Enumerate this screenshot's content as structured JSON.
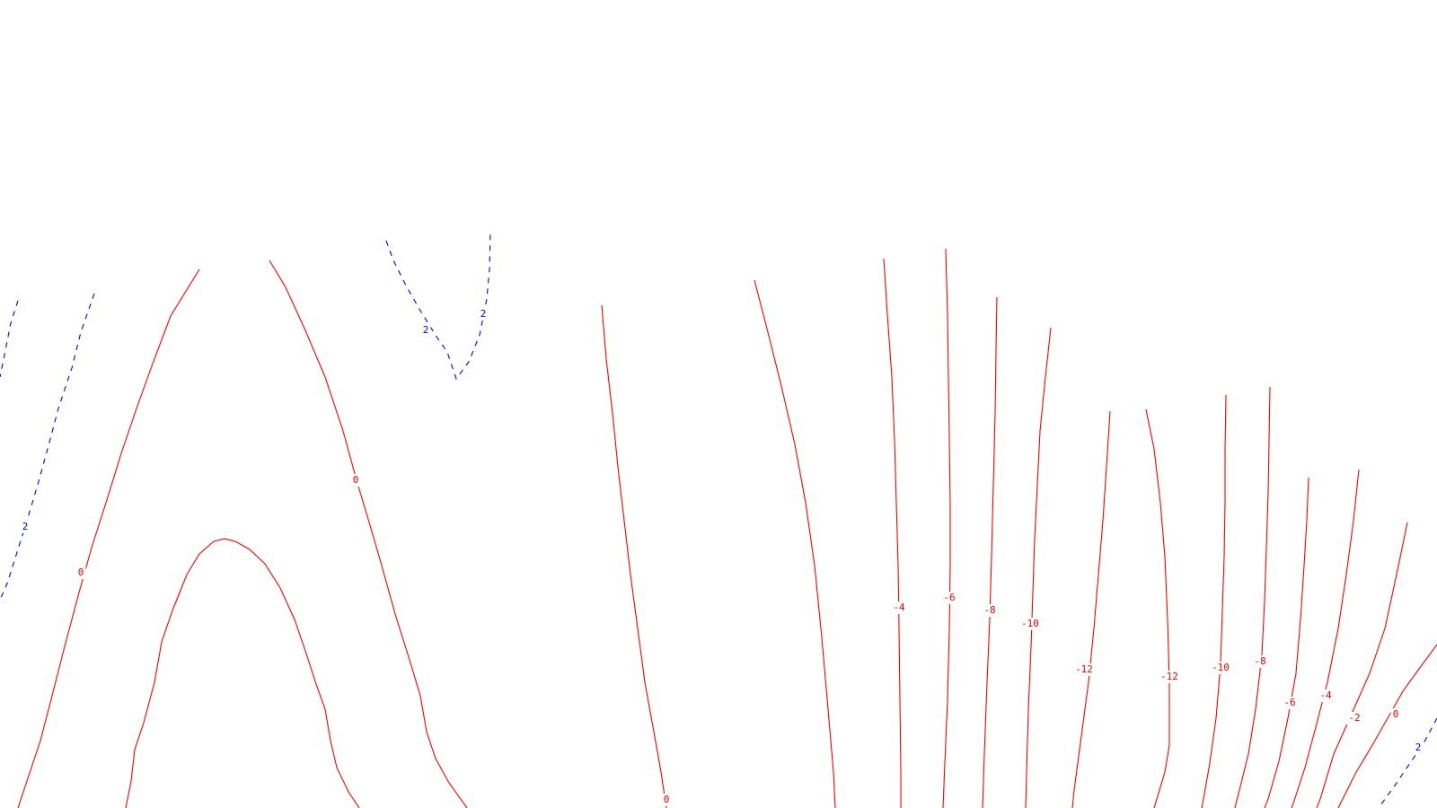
{
  "chart_data": {
    "type": "contour",
    "title": "",
    "xlabel": "",
    "ylabel": "",
    "grid": false,
    "legend": "none",
    "colors": {
      "positive": "#0000ff",
      "zero": "#ff0000",
      "negative": "#ff0000"
    },
    "line_styles": {
      "positive": "dashed",
      "zero": "solid",
      "negative": "solid"
    },
    "contours": [
      {
        "id": "c-pos-left-a",
        "level": 2,
        "label": ""
      },
      {
        "id": "c-pos-left-b",
        "level": 2,
        "label": "2"
      },
      {
        "id": "c-pos-top",
        "level": 2,
        "label": "2",
        "label2": "2"
      },
      {
        "id": "c-zero-arch-outer",
        "level": 0,
        "label": "0",
        "label2": "0"
      },
      {
        "id": "c-zero-arch-inner",
        "level": 0,
        "label": ""
      },
      {
        "id": "c-zero-mid-a",
        "level": 0,
        "label": "0"
      },
      {
        "id": "c-zero-mid-b",
        "level": 0,
        "label": ""
      },
      {
        "id": "c-neg-4-left",
        "level": -4,
        "label": "-4"
      },
      {
        "id": "c-neg-6-left",
        "level": -6,
        "label": "-6"
      },
      {
        "id": "c-neg-8-left",
        "level": -8,
        "label": "-8"
      },
      {
        "id": "c-neg-10-left",
        "level": -10,
        "label": "-10"
      },
      {
        "id": "c-neg-12-left",
        "level": -12,
        "label": "-12"
      },
      {
        "id": "c-neg-12-right",
        "level": -12,
        "label": "-12"
      },
      {
        "id": "c-neg-10-right",
        "level": -10,
        "label": "-10"
      },
      {
        "id": "c-neg-8-right",
        "level": -8,
        "label": "-8"
      },
      {
        "id": "c-neg-6-right",
        "level": -6,
        "label": "-6"
      },
      {
        "id": "c-neg-4-right",
        "level": -4,
        "label": "-4"
      },
      {
        "id": "c-neg-2-right",
        "level": -2,
        "label": "-2"
      },
      {
        "id": "c-zero-right",
        "level": 0,
        "label": "0"
      },
      {
        "id": "c-pos-right",
        "level": 2,
        "label": "2"
      }
    ]
  }
}
